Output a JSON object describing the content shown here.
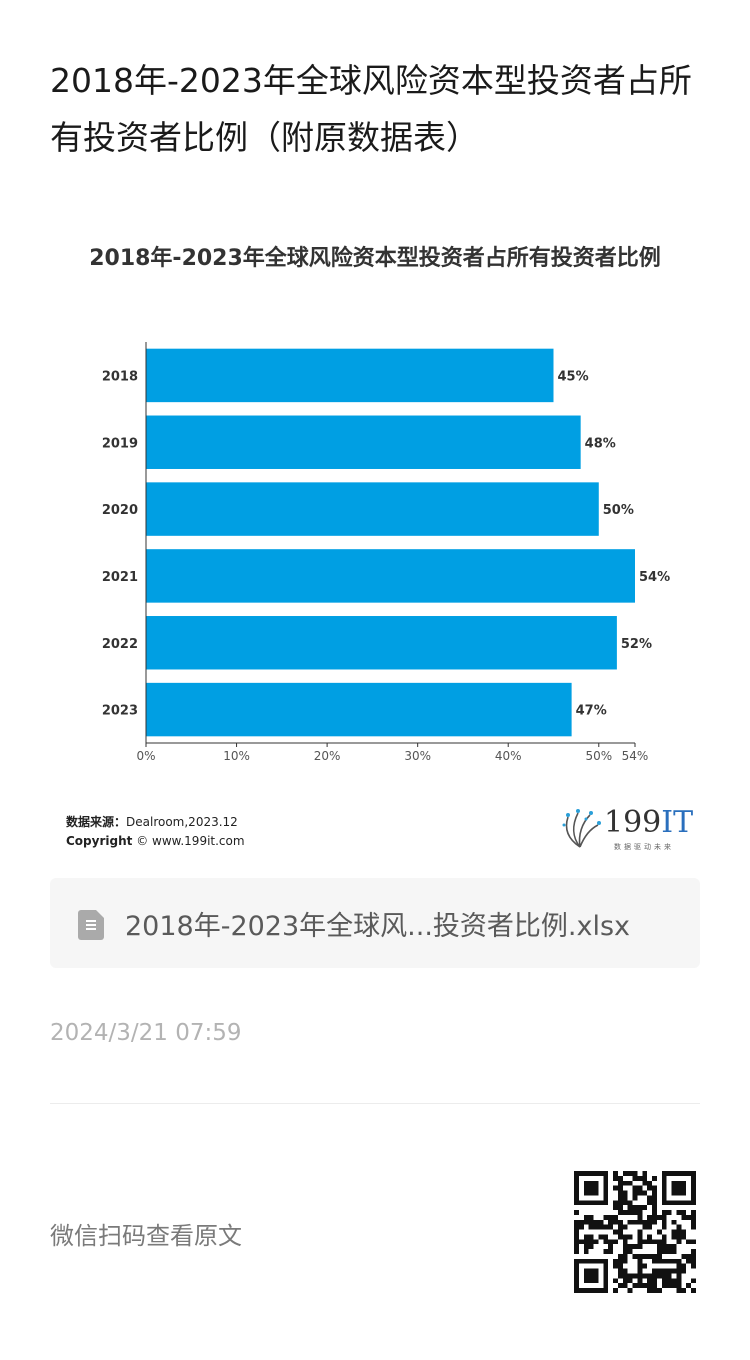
{
  "article": {
    "title": "2018年-2023年全球风险资本型投资者占所有投资者比例（附原数据表）",
    "file_name": "2018年-2023年全球风...投资者比例.xlsx",
    "date": "2024/3/21 07:59",
    "scan_text": "微信扫码查看原文"
  },
  "chart_data": {
    "type": "bar",
    "orientation": "horizontal",
    "title": "2018年-2023年全球风险资本型投资者占所有投资者比例",
    "categories": [
      "2018",
      "2019",
      "2020",
      "2021",
      "2022",
      "2023"
    ],
    "values": [
      45,
      48,
      50,
      54,
      52,
      47
    ],
    "value_labels": [
      "45%",
      "48%",
      "50%",
      "54%",
      "52%",
      "47%"
    ],
    "xlim": [
      0,
      54
    ],
    "x_ticks": [
      {
        "value": 0,
        "label": "0%"
      },
      {
        "value": 10,
        "label": "10%"
      },
      {
        "value": 20,
        "label": "20%"
      },
      {
        "value": 30,
        "label": "30%"
      },
      {
        "value": 40,
        "label": "40%"
      },
      {
        "value": 50,
        "label": "50%"
      },
      {
        "value": 54,
        "label": "54%"
      }
    ],
    "bar_color": "#009fe3",
    "grid": false,
    "legend": "none"
  },
  "source": {
    "label": "数据来源：",
    "value": "Dealroom,2023.12",
    "copyright_label": "Copyright",
    "copyright_value": "© www.199it.com"
  },
  "logo": {
    "main": "199",
    "it": "IT",
    "tagline": "数据驱动未来"
  },
  "icons": {
    "file": "spreadsheet-file-icon",
    "qr": "qr-code-icon",
    "logo": "199it-logo-icon"
  }
}
